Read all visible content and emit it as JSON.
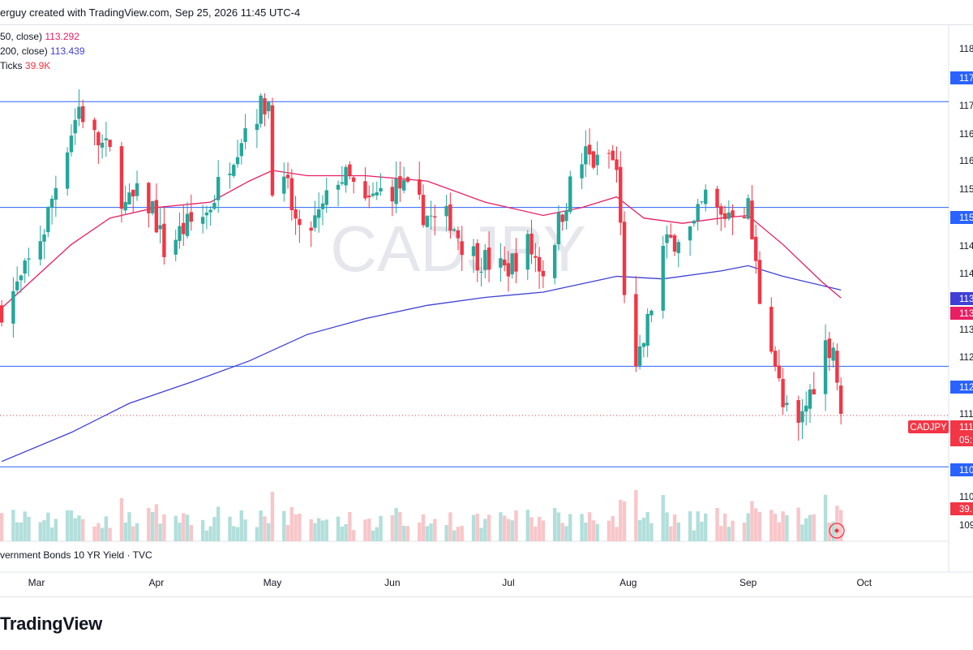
{
  "header": {
    "title": "erguy created with TradingView.com, Sep 25, 2026 11:45 UTC-4"
  },
  "legend": [
    {
      "label": "50, close)",
      "value": "113.292",
      "color": "#e91e63"
    },
    {
      "label": "200, close)",
      "value": "113.439",
      "color": "#3f3fd6"
    },
    {
      "label": "Ticks",
      "value": "39.9K",
      "color": "#f23645"
    }
  ],
  "watermark": "CADJPY",
  "source_note": "vernment Bonds 10 YR Yield · TVC",
  "brand": "TradingView",
  "colors": {
    "up": "#26a69a",
    "down": "#f23645",
    "ma50": "#e91e63",
    "ma200": "#3f3fd6",
    "hline": "#2962ff",
    "vol_up": "#b2dfdb",
    "vol_down": "#f8c6c9"
  },
  "price_axis": {
    "labels": [
      "118",
      "117",
      "116",
      "116",
      "115",
      "114",
      "114",
      "113",
      "112",
      "111",
      "110",
      "109"
    ],
    "tags": [
      {
        "text": "117",
        "color": "#2962ff"
      },
      {
        "text": "115",
        "color": "#2962ff"
      },
      {
        "text": "113",
        "color": "#3f3fd6"
      },
      {
        "text": "113",
        "color": "#e91e63"
      },
      {
        "text": "112",
        "color": "#2962ff"
      },
      {
        "text": "111",
        "color": "#f23645"
      },
      {
        "text": "05:",
        "color": "#f23645"
      },
      {
        "text": "110",
        "color": "#2962ff"
      },
      {
        "text": "39.",
        "color": "#f23645"
      }
    ],
    "symbol_tag": "CADJPY"
  },
  "time_axis": {
    "labels": [
      "Mar",
      "Apr",
      "May",
      "Jun",
      "Jul",
      "Aug",
      "Sep",
      "Oct"
    ]
  },
  "chart_data": {
    "type": "candlestick",
    "symbol": "CADJPY",
    "ylim": [
      109.0,
      118.4
    ],
    "horizontal_lines": [
      117.0,
      115.0,
      112.0,
      110.1
    ],
    "last_price": 111.1,
    "ma50_last": 113.292,
    "ma200_last": 113.439,
    "volume_last": "39.9K",
    "ma50": [
      {
        "date": "2026-02-20",
        "y": 113.1
      },
      {
        "date": "2026-03-01",
        "y": 113.7
      },
      {
        "date": "2026-03-10",
        "y": 114.3
      },
      {
        "date": "2026-03-20",
        "y": 114.8
      },
      {
        "date": "2026-04-01",
        "y": 115.0
      },
      {
        "date": "2026-04-15",
        "y": 115.1
      },
      {
        "date": "2026-04-25",
        "y": 115.5
      },
      {
        "date": "2026-05-01",
        "y": 115.7
      },
      {
        "date": "2026-05-10",
        "y": 115.6
      },
      {
        "date": "2026-05-25",
        "y": 115.6
      },
      {
        "date": "2026-06-10",
        "y": 115.5
      },
      {
        "date": "2026-06-25",
        "y": 115.1
      },
      {
        "date": "2026-07-10",
        "y": 114.85
      },
      {
        "date": "2026-07-20",
        "y": 115.0
      },
      {
        "date": "2026-07-29",
        "y": 115.2
      },
      {
        "date": "2026-08-05",
        "y": 114.8
      },
      {
        "date": "2026-08-15",
        "y": 114.7
      },
      {
        "date": "2026-08-25",
        "y": 114.8
      },
      {
        "date": "2026-09-01",
        "y": 114.85
      },
      {
        "date": "2026-09-10",
        "y": 114.3
      },
      {
        "date": "2026-09-20",
        "y": 113.6
      },
      {
        "date": "2026-09-25",
        "y": 113.29
      }
    ],
    "ma200": [
      {
        "date": "2026-02-20",
        "y": 110.2
      },
      {
        "date": "2026-03-10",
        "y": 110.75
      },
      {
        "date": "2026-03-25",
        "y": 111.3
      },
      {
        "date": "2026-04-10",
        "y": 111.7
      },
      {
        "date": "2026-04-25",
        "y": 112.1
      },
      {
        "date": "2026-05-10",
        "y": 112.6
      },
      {
        "date": "2026-05-25",
        "y": 112.9
      },
      {
        "date": "2026-06-10",
        "y": 113.15
      },
      {
        "date": "2026-06-25",
        "y": 113.3
      },
      {
        "date": "2026-07-10",
        "y": 113.4
      },
      {
        "date": "2026-07-29",
        "y": 113.7
      },
      {
        "date": "2026-08-10",
        "y": 113.65
      },
      {
        "date": "2026-08-25",
        "y": 113.8
      },
      {
        "date": "2026-09-01",
        "y": 113.9
      },
      {
        "date": "2026-09-10",
        "y": 113.7
      },
      {
        "date": "2026-09-25",
        "y": 113.44
      }
    ],
    "waypoints": [
      {
        "date": "2026-02-20",
        "close": 113.1
      },
      {
        "date": "2026-02-25",
        "close": 113.6
      },
      {
        "date": "2026-03-03",
        "close": 114.6
      },
      {
        "date": "2026-03-08",
        "close": 116.0
      },
      {
        "date": "2026-03-12",
        "close": 116.9
      },
      {
        "date": "2026-03-16",
        "close": 116.3
      },
      {
        "date": "2026-03-20",
        "close": 116.0
      },
      {
        "date": "2026-03-24",
        "close": 115.0
      },
      {
        "date": "2026-03-27",
        "close": 115.2
      },
      {
        "date": "2026-03-31",
        "close": 115.0
      },
      {
        "date": "2026-04-03",
        "close": 114.2
      },
      {
        "date": "2026-04-08",
        "close": 114.6
      },
      {
        "date": "2026-04-14",
        "close": 114.9
      },
      {
        "date": "2026-04-20",
        "close": 115.9
      },
      {
        "date": "2026-04-25",
        "close": 116.7
      },
      {
        "date": "2026-04-30",
        "close": 117.0
      },
      {
        "date": "2026-05-01",
        "close": 115.5
      },
      {
        "date": "2026-05-05",
        "close": 115.3
      },
      {
        "date": "2026-05-08",
        "close": 114.4
      },
      {
        "date": "2026-05-13",
        "close": 114.8
      },
      {
        "date": "2026-05-18",
        "close": 115.6
      },
      {
        "date": "2026-05-21",
        "close": 115.5
      },
      {
        "date": "2026-05-25",
        "close": 115.0
      },
      {
        "date": "2026-05-29",
        "close": 115.3
      },
      {
        "date": "2026-06-03",
        "close": 115.4
      },
      {
        "date": "2026-06-08",
        "close": 115.0
      },
      {
        "date": "2026-06-12",
        "close": 114.7
      },
      {
        "date": "2026-06-16",
        "close": 114.8
      },
      {
        "date": "2026-06-20",
        "close": 114.2
      },
      {
        "date": "2026-06-25",
        "close": 114.0
      },
      {
        "date": "2026-06-30",
        "close": 113.8
      },
      {
        "date": "2026-07-06",
        "close": 114.3
      },
      {
        "date": "2026-07-10",
        "close": 113.8
      },
      {
        "date": "2026-07-14",
        "close": 114.7
      },
      {
        "date": "2026-07-17",
        "close": 115.4
      },
      {
        "date": "2026-07-21",
        "close": 116.0
      },
      {
        "date": "2026-07-24",
        "close": 115.8
      },
      {
        "date": "2026-07-27",
        "close": 116.0
      },
      {
        "date": "2026-07-29",
        "close": 115.7
      },
      {
        "date": "2026-07-31",
        "close": 113.5
      },
      {
        "date": "2026-08-03",
        "close": 111.8
      },
      {
        "date": "2026-08-06",
        "close": 112.8
      },
      {
        "date": "2026-08-10",
        "close": 114.2
      },
      {
        "date": "2026-08-14",
        "close": 114.5
      },
      {
        "date": "2026-08-18",
        "close": 114.6
      },
      {
        "date": "2026-08-21",
        "close": 115.2
      },
      {
        "date": "2026-08-25",
        "close": 114.8
      },
      {
        "date": "2026-08-28",
        "close": 115.0
      },
      {
        "date": "2026-09-01",
        "close": 115.0
      },
      {
        "date": "2026-09-04",
        "close": 113.3
      },
      {
        "date": "2026-09-07",
        "close": 112.5
      },
      {
        "date": "2026-09-10",
        "close": 111.2
      },
      {
        "date": "2026-09-14",
        "close": 110.8
      },
      {
        "date": "2026-09-17",
        "close": 111.5
      },
      {
        "date": "2026-09-21",
        "close": 112.4
      },
      {
        "date": "2026-09-23",
        "close": 112.4
      },
      {
        "date": "2026-09-25",
        "close": 111.1
      }
    ]
  }
}
